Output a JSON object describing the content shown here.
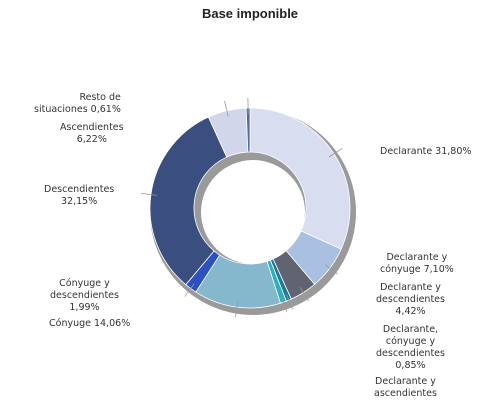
{
  "chart_data": {
    "type": "pie",
    "subtype": "donut",
    "title": "Base imponible",
    "series": [
      {
        "name": "Declarante",
        "value": 31.8,
        "label_lines": [
          "Declarante 31,80%"
        ],
        "color": "#d8ddef"
      },
      {
        "name": "Declarante y cónyuge",
        "value": 7.1,
        "label_lines": [
          "Declarante y",
          "cónyuge 7,10%"
        ],
        "color": "#a9c0e2"
      },
      {
        "name": "Declarante y descendientes",
        "value": 4.42,
        "label_lines": [
          "Declarante y",
          "descendientes",
          "4,42%"
        ],
        "color": "#5f6470"
      },
      {
        "name": "Declarante, cónyuge y descendientes",
        "value": 0.85,
        "label_lines": [
          "Declarante,",
          "cónyuge y",
          "descendientes",
          "0,85%"
        ],
        "color": "#1f7a98"
      },
      {
        "name": "Declarante y ascendientes",
        "value": 1.0,
        "label_lines": [
          "Declarante y",
          "ascendientes"
        ],
        "color": "#2ab0c2"
      },
      {
        "name": "Cónyuge",
        "value": 14.06,
        "label_lines": [
          "Cónyuge 14,06%"
        ],
        "color": "#85b8cc"
      },
      {
        "name": "Cónyuge y descendientes",
        "value": 1.99,
        "label_lines": [
          "Cónyuge y",
          "descendientes",
          "1,99%"
        ],
        "color": "#2e51c2"
      },
      {
        "name": "Descendientes",
        "value": 32.15,
        "label_lines": [
          "Descendientes",
          "32,15%"
        ],
        "color": "#3a4e80"
      },
      {
        "name": "Ascendientes",
        "value": 6.22,
        "label_lines": [
          "Ascendientes",
          "6,22%"
        ],
        "color": "#d2d6ea"
      },
      {
        "name": "Resto de situaciones",
        "value": 0.61,
        "label_lines": [
          "Resto de",
          "situaciones 0,61%"
        ],
        "color": "#4b6aa6"
      }
    ]
  }
}
